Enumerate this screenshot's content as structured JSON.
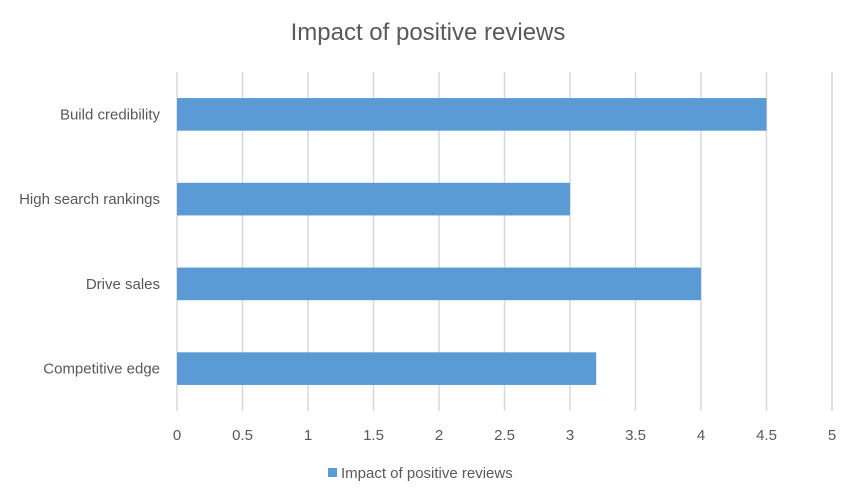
{
  "chart_data": {
    "type": "bar",
    "orientation": "horizontal",
    "title": "Impact of positive reviews",
    "categories": [
      "Build credibility",
      "High search rankings",
      "Drive sales",
      "Competitive edge"
    ],
    "series": [
      {
        "name": "Impact of positive reviews",
        "values": [
          4.5,
          3,
          4,
          3.2
        ],
        "color": "#5b9bd5"
      }
    ],
    "xlim": [
      0,
      5
    ],
    "x_ticks": [
      "0",
      "0.5",
      "1",
      "1.5",
      "2",
      "2.5",
      "3",
      "3.5",
      "4",
      "4.5",
      "5"
    ],
    "xlabel": "",
    "ylabel": "",
    "grid": true,
    "legend_position": "bottom"
  }
}
